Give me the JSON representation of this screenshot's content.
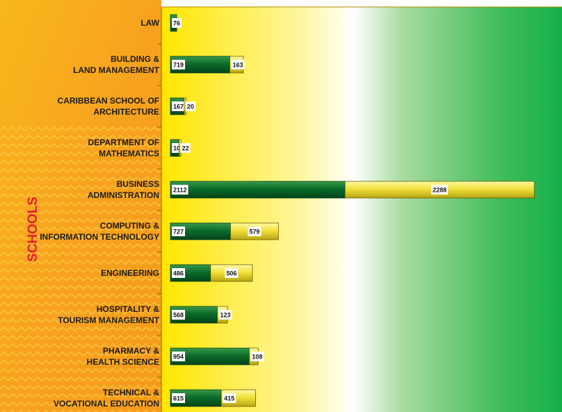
{
  "chart_data": {
    "type": "bar",
    "orientation": "horizontal",
    "stacked": true,
    "y_label": "SCHOOLS",
    "categories": [
      "LAW",
      "BUILDING &\nLAND MANAGEMENT",
      "CARIBBEAN SCHOOL OF\nARCHITECTURE",
      "DEPARTMENT OF\nMATHEMATICS",
      "BUSINESS\nADMINISTRATION",
      "COMPUTING &\nINFORMATION TECHNOLOGY",
      "ENGINEERING",
      "HOSPITALITY &\nTOURISM MANAGEMENT",
      "PHARMACY &\nHEALTH SCIENCE",
      "TECHNICAL &\nVOCATIONAL EDUCATION"
    ],
    "series": [
      {
        "color": "#0b6b2a",
        "values": [
          76,
          719,
          167,
          106,
          2112,
          727,
          486,
          568,
          954,
          615
        ]
      },
      {
        "color": "#f2e23a",
        "values": [
          null,
          163,
          20,
          22,
          2288,
          579,
          506,
          123,
          108,
          415
        ]
      }
    ],
    "xlim": [
      0,
      4735
    ]
  }
}
